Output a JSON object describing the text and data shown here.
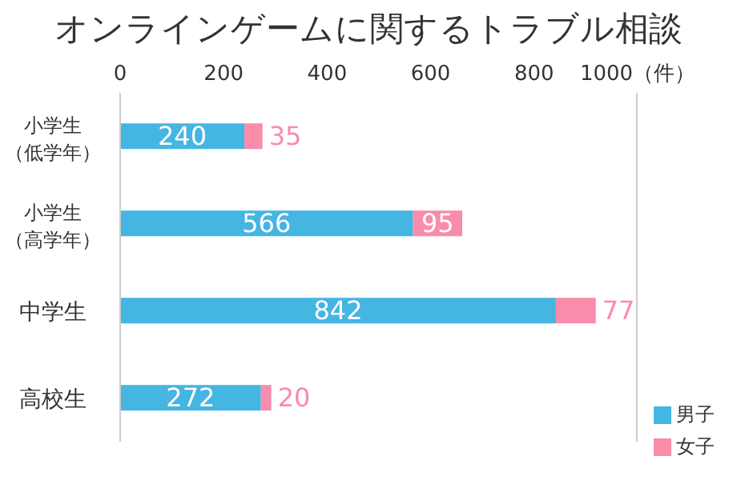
{
  "chart_data": {
    "type": "bar",
    "orientation": "horizontal",
    "stacked": true,
    "title": "オンラインゲームに関するトラブル相談",
    "categories": [
      "小学生（低学年）",
      "小学生（高学年）",
      "中学生",
      "高校生"
    ],
    "series": [
      {
        "name": "男子",
        "color": "#45b5e2",
        "values": [
          240,
          566,
          842,
          272
        ]
      },
      {
        "name": "女子",
        "color": "#f98bab",
        "values": [
          35,
          95,
          77,
          20
        ]
      }
    ],
    "xlim": [
      0,
      1000
    ],
    "xticks": [
      0,
      200,
      400,
      600,
      800,
      {
        "value": 1000,
        "label": "1000（件）"
      }
    ],
    "data_labels": true,
    "legend": "bottom right",
    "grid": false
  }
}
